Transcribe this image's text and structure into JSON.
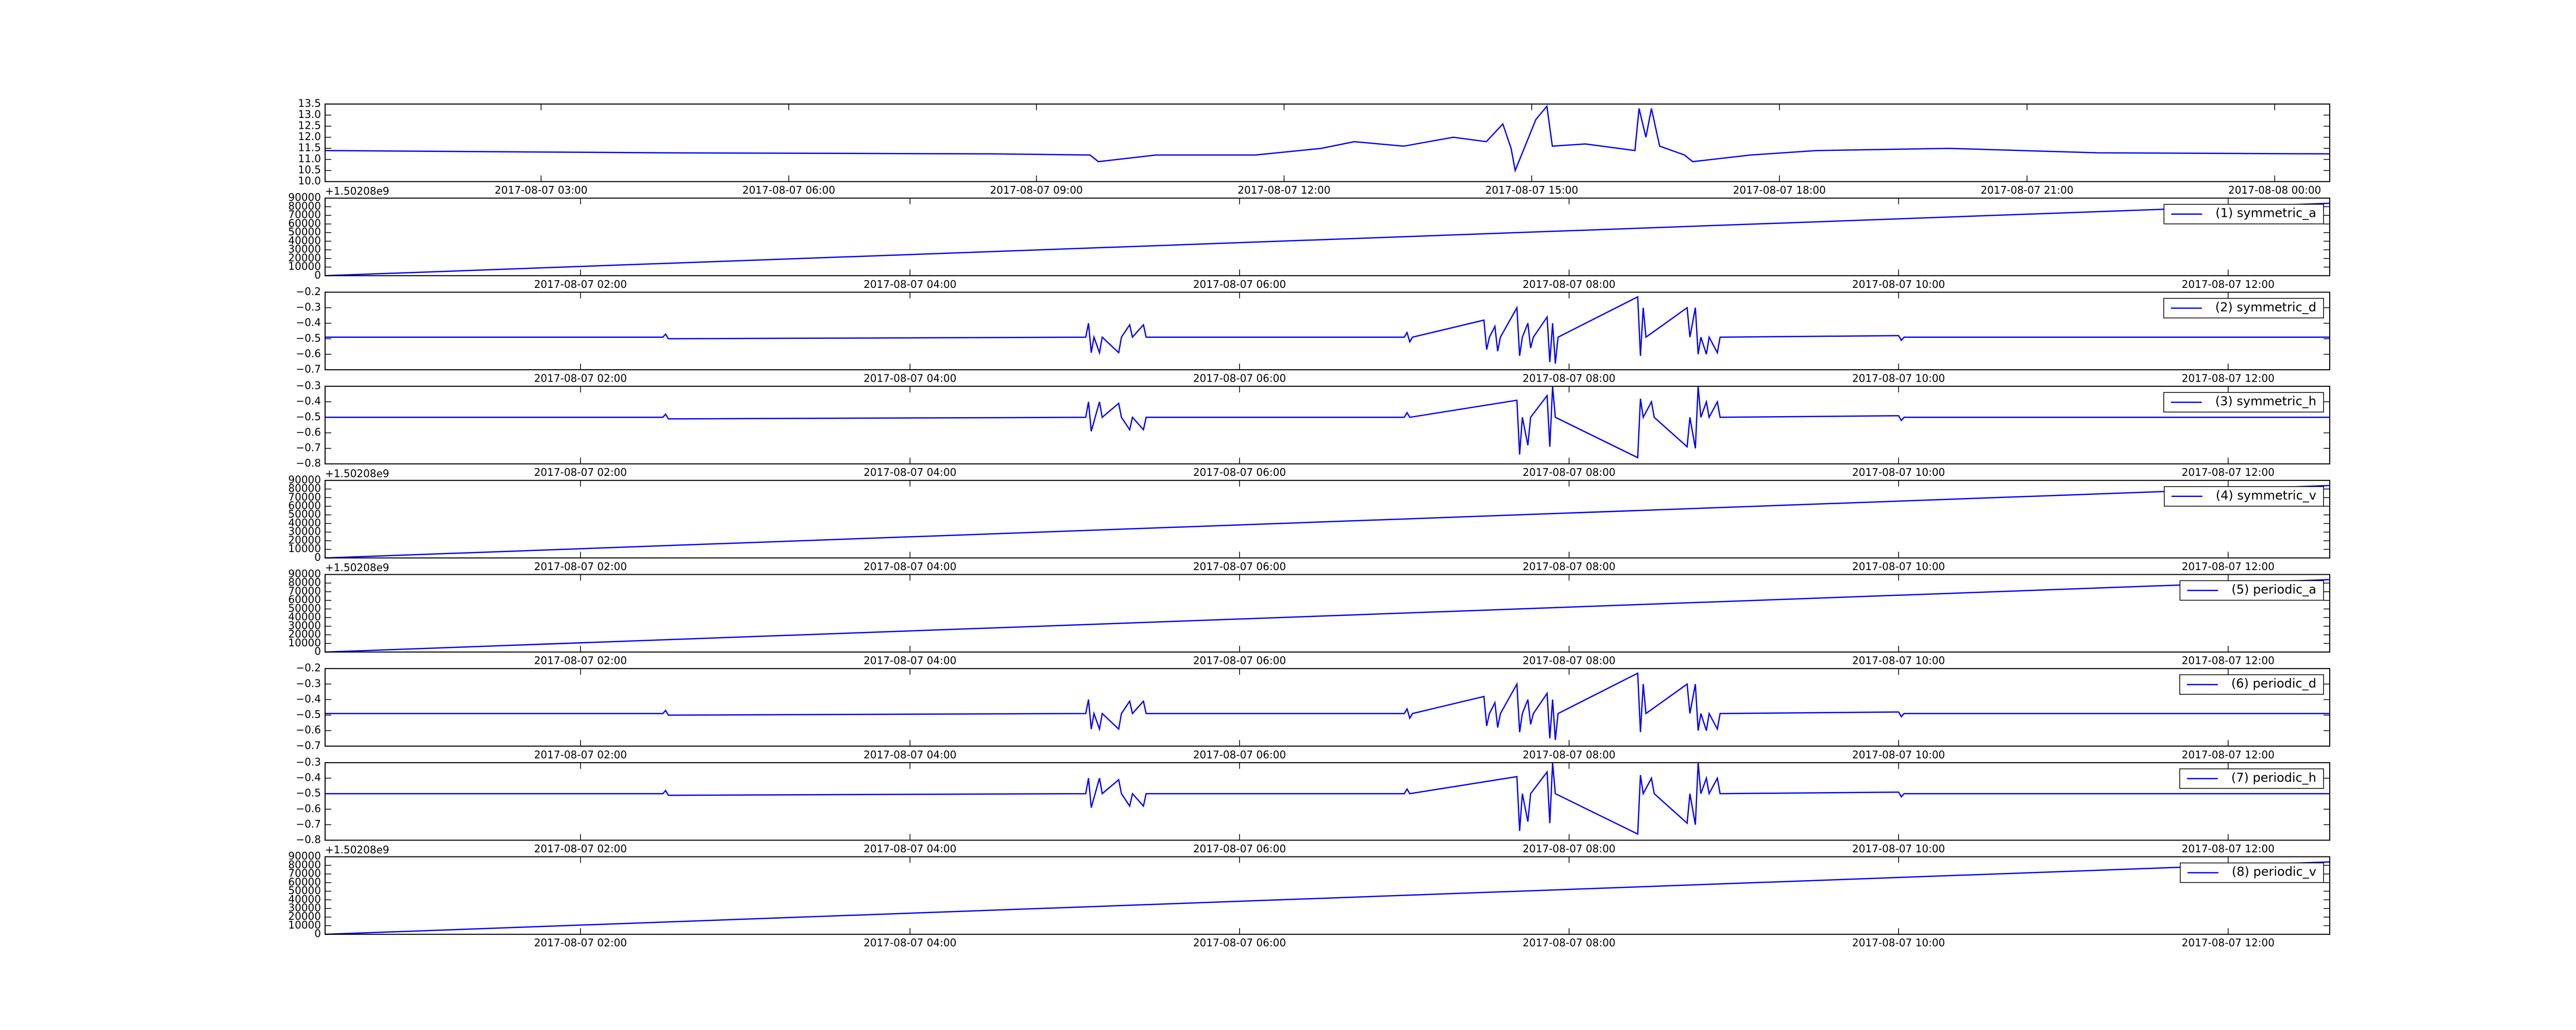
{
  "chart_data": [
    {
      "type": "line",
      "color": "#0000ff",
      "x": [
        "2017-08-07 00:23",
        "2017-08-07 04:27",
        "2017-08-07 08:27",
        "2017-08-07 09:39",
        "2017-08-07 09:45",
        "2017-08-07 10:27",
        "2017-08-07 11:39",
        "2017-08-07 12:27",
        "2017-08-07 12:51",
        "2017-08-07 13:27",
        "2017-08-07 14:03",
        "2017-08-07 14:27",
        "2017-08-07 14:39",
        "2017-08-07 14:45",
        "2017-08-07 14:48",
        "2017-08-07 15:03",
        "2017-08-07 15:11",
        "2017-08-07 15:15",
        "2017-08-07 15:39",
        "2017-08-07 16:15",
        "2017-08-07 16:18",
        "2017-08-07 16:23",
        "2017-08-07 16:27",
        "2017-08-07 16:33",
        "2017-08-07 16:51",
        "2017-08-07 16:57",
        "2017-08-07 17:39",
        "2017-08-07 18:27",
        "2017-08-07 20:03",
        "2017-08-07 21:51",
        "2017-08-08 00:40"
      ],
      "values": [
        11.4,
        11.3,
        11.25,
        11.2,
        10.9,
        11.2,
        11.2,
        11.5,
        11.8,
        11.6,
        12.0,
        11.8,
        12.6,
        11.5,
        10.5,
        12.8,
        13.4,
        11.6,
        11.7,
        11.4,
        13.3,
        12.0,
        13.3,
        11.6,
        11.2,
        10.9,
        11.2,
        11.4,
        11.5,
        11.3,
        11.25
      ],
      "xlim": [
        "2017-08-07 00:23",
        "2017-08-08 00:40"
      ],
      "xticks": [
        "2017-08-07 03:00",
        "2017-08-07 06:00",
        "2017-08-07 09:00",
        "2017-08-07 12:00",
        "2017-08-07 15:00",
        "2017-08-07 18:00",
        "2017-08-07 21:00",
        "2017-08-08 00:00"
      ],
      "ylim": [
        10,
        13.5
      ],
      "yticks": [
        {
          "value": 10,
          "label": "10.0"
        },
        10.5,
        {
          "value": 11,
          "label": "11.0"
        },
        11.5,
        {
          "value": 12,
          "label": "12.0"
        },
        12.5,
        {
          "value": 13,
          "label": "13.0"
        },
        13.5
      ]
    },
    {
      "type": "line",
      "x": [
        "2017-08-07 00:27",
        "2017-08-07 12:37"
      ],
      "series": [
        {
          "name": "(1) symmetric_a",
          "color": "#0000ff",
          "values": [
            0,
            84000
          ]
        }
      ],
      "xlim": [
        "2017-08-07 00:27",
        "2017-08-07 12:37"
      ],
      "xticks": [
        "2017-08-07 02:00",
        "2017-08-07 04:00",
        "2017-08-07 06:00",
        "2017-08-07 08:00",
        "2017-08-07 10:00",
        "2017-08-07 12:00"
      ],
      "ylim": [
        0,
        90000
      ],
      "yticks": [
        0,
        10000,
        20000,
        30000,
        40000,
        50000,
        60000,
        70000,
        80000,
        90000
      ],
      "y_offset_label": "+1.50208e9",
      "legend": "upper right"
    },
    {
      "type": "line",
      "x": [
        "2017-08-07 00:27",
        "2017-08-07 02:30",
        "2017-08-07 02:31",
        "2017-08-07 02:32",
        "2017-08-07 05:04",
        "2017-08-07 05:05",
        "2017-08-07 05:06",
        "2017-08-07 05:07",
        "2017-08-07 05:09",
        "2017-08-07 05:10",
        "2017-08-07 05:16",
        "2017-08-07 05:17",
        "2017-08-07 05:20",
        "2017-08-07 05:21",
        "2017-08-07 05:25",
        "2017-08-07 05:26",
        "2017-08-07 07:00",
        "2017-08-07 07:01",
        "2017-08-07 07:02",
        "2017-08-07 07:03",
        "2017-08-07 07:29",
        "2017-08-07 07:30",
        "2017-08-07 07:31",
        "2017-08-07 07:33",
        "2017-08-07 07:34",
        "2017-08-07 07:35",
        "2017-08-07 07:41",
        "2017-08-07 07:42",
        "2017-08-07 07:43",
        "2017-08-07 07:45",
        "2017-08-07 07:46",
        "2017-08-07 07:47",
        "2017-08-07 07:52",
        "2017-08-07 07:53",
        "2017-08-07 07:54",
        "2017-08-07 07:55",
        "2017-08-07 07:56",
        "2017-08-07 08:25",
        "2017-08-07 08:26",
        "2017-08-07 08:27",
        "2017-08-07 08:28",
        "2017-08-07 08:43",
        "2017-08-07 08:44",
        "2017-08-07 08:46",
        "2017-08-07 08:47",
        "2017-08-07 08:48",
        "2017-08-07 08:50",
        "2017-08-07 08:51",
        "2017-08-07 08:54",
        "2017-08-07 08:55",
        "2017-08-07 10:00",
        "2017-08-07 10:01",
        "2017-08-07 10:02",
        "2017-08-07 12:37"
      ],
      "series": [
        {
          "name": "(2) symmetric_d",
          "color": "#0000ff",
          "values": [
            -0.49,
            -0.49,
            -0.47,
            -0.5,
            -0.49,
            -0.4,
            -0.59,
            -0.49,
            -0.59,
            -0.49,
            -0.59,
            -0.49,
            -0.41,
            -0.49,
            -0.41,
            -0.49,
            -0.49,
            -0.46,
            -0.52,
            -0.49,
            -0.38,
            -0.57,
            -0.49,
            -0.42,
            -0.58,
            -0.49,
            -0.3,
            -0.61,
            -0.49,
            -0.4,
            -0.56,
            -0.49,
            -0.36,
            -0.65,
            -0.4,
            -0.66,
            -0.49,
            -0.23,
            -0.61,
            -0.3,
            -0.49,
            -0.3,
            -0.49,
            -0.3,
            -0.6,
            -0.49,
            -0.6,
            -0.49,
            -0.59,
            -0.49,
            -0.48,
            -0.51,
            -0.49,
            -0.49
          ]
        }
      ],
      "xlim": [
        "2017-08-07 00:27",
        "2017-08-07 12:37"
      ],
      "xticks": [
        "2017-08-07 02:00",
        "2017-08-07 04:00",
        "2017-08-07 06:00",
        "2017-08-07 08:00",
        "2017-08-07 10:00",
        "2017-08-07 12:00"
      ],
      "ylim": [
        -0.7,
        -0.2
      ],
      "yticks": [
        {
          "value": -0.7,
          "label": "−0.7"
        },
        {
          "value": -0.6,
          "label": "−0.6"
        },
        {
          "value": -0.5,
          "label": "−0.5"
        },
        {
          "value": -0.4,
          "label": "−0.4"
        },
        {
          "value": -0.3,
          "label": "−0.3"
        },
        {
          "value": -0.2,
          "label": "−0.2"
        }
      ],
      "legend": "upper right"
    },
    {
      "type": "line",
      "x": [
        "2017-08-07 00:27",
        "2017-08-07 02:30",
        "2017-08-07 02:31",
        "2017-08-07 02:32",
        "2017-08-07 05:04",
        "2017-08-07 05:05",
        "2017-08-07 05:06",
        "2017-08-07 05:09",
        "2017-08-07 05:10",
        "2017-08-07 05:16",
        "2017-08-07 05:17",
        "2017-08-07 05:20",
        "2017-08-07 05:21",
        "2017-08-07 05:25",
        "2017-08-07 05:26",
        "2017-08-07 07:00",
        "2017-08-07 07:01",
        "2017-08-07 07:02",
        "2017-08-07 07:41",
        "2017-08-07 07:42",
        "2017-08-07 07:43",
        "2017-08-07 07:45",
        "2017-08-07 07:46",
        "2017-08-07 07:52",
        "2017-08-07 07:53",
        "2017-08-07 07:54",
        "2017-08-07 07:55",
        "2017-08-07 08:25",
        "2017-08-07 08:26",
        "2017-08-07 08:27",
        "2017-08-07 08:30",
        "2017-08-07 08:31",
        "2017-08-07 08:43",
        "2017-08-07 08:44",
        "2017-08-07 08:46",
        "2017-08-07 08:47",
        "2017-08-07 08:48",
        "2017-08-07 08:50",
        "2017-08-07 08:51",
        "2017-08-07 08:54",
        "2017-08-07 08:55",
        "2017-08-07 10:00",
        "2017-08-07 10:01",
        "2017-08-07 10:02",
        "2017-08-07 12:37"
      ],
      "series": [
        {
          "name": "(3) symmetric_h",
          "color": "#0000ff",
          "values": [
            -0.5,
            -0.5,
            -0.48,
            -0.51,
            -0.5,
            -0.4,
            -0.59,
            -0.4,
            -0.5,
            -0.41,
            -0.5,
            -0.58,
            -0.5,
            -0.58,
            -0.5,
            -0.5,
            -0.47,
            -0.5,
            -0.39,
            -0.74,
            -0.5,
            -0.68,
            -0.5,
            -0.36,
            -0.69,
            -0.3,
            -0.5,
            -0.76,
            -0.38,
            -0.5,
            -0.4,
            -0.5,
            -0.69,
            -0.5,
            -0.7,
            -0.3,
            -0.5,
            -0.4,
            -0.5,
            -0.4,
            -0.5,
            -0.49,
            -0.52,
            -0.5,
            -0.5
          ]
        }
      ],
      "xlim": [
        "2017-08-07 00:27",
        "2017-08-07 12:37"
      ],
      "xticks": [
        "2017-08-07 02:00",
        "2017-08-07 04:00",
        "2017-08-07 06:00",
        "2017-08-07 08:00",
        "2017-08-07 10:00",
        "2017-08-07 12:00"
      ],
      "ylim": [
        -0.8,
        -0.3
      ],
      "yticks": [
        {
          "value": -0.8,
          "label": "−0.8"
        },
        {
          "value": -0.7,
          "label": "−0.7"
        },
        {
          "value": -0.6,
          "label": "−0.6"
        },
        {
          "value": -0.5,
          "label": "−0.5"
        },
        {
          "value": -0.4,
          "label": "−0.4"
        },
        {
          "value": -0.3,
          "label": "−0.3"
        }
      ],
      "legend": "upper right"
    },
    {
      "type": "line",
      "x": [
        "2017-08-07 00:27",
        "2017-08-07 12:37"
      ],
      "series": [
        {
          "name": "(4) symmetric_v",
          "color": "#0000ff",
          "values": [
            0,
            84000
          ]
        }
      ],
      "xlim": [
        "2017-08-07 00:27",
        "2017-08-07 12:37"
      ],
      "xticks": [
        "2017-08-07 02:00",
        "2017-08-07 04:00",
        "2017-08-07 06:00",
        "2017-08-07 08:00",
        "2017-08-07 10:00",
        "2017-08-07 12:00"
      ],
      "ylim": [
        0,
        90000
      ],
      "yticks": [
        0,
        10000,
        20000,
        30000,
        40000,
        50000,
        60000,
        70000,
        80000,
        90000
      ],
      "y_offset_label": "+1.50208e9",
      "legend": "upper right"
    },
    {
      "type": "line",
      "x": [
        "2017-08-07 00:27",
        "2017-08-07 12:37"
      ],
      "series": [
        {
          "name": "(5) periodic_a",
          "color": "#0000ff",
          "values": [
            0,
            84000
          ]
        }
      ],
      "xlim": [
        "2017-08-07 00:27",
        "2017-08-07 12:37"
      ],
      "xticks": [
        "2017-08-07 02:00",
        "2017-08-07 04:00",
        "2017-08-07 06:00",
        "2017-08-07 08:00",
        "2017-08-07 10:00",
        "2017-08-07 12:00"
      ],
      "ylim": [
        0,
        90000
      ],
      "yticks": [
        0,
        10000,
        20000,
        30000,
        40000,
        50000,
        60000,
        70000,
        80000,
        90000
      ],
      "y_offset_label": "+1.50208e9",
      "legend": "upper right"
    },
    {
      "type": "line",
      "x": [
        "2017-08-07 00:27",
        "2017-08-07 02:30",
        "2017-08-07 02:31",
        "2017-08-07 02:32",
        "2017-08-07 05:04",
        "2017-08-07 05:05",
        "2017-08-07 05:06",
        "2017-08-07 05:07",
        "2017-08-07 05:09",
        "2017-08-07 05:10",
        "2017-08-07 05:16",
        "2017-08-07 05:17",
        "2017-08-07 05:20",
        "2017-08-07 05:21",
        "2017-08-07 05:25",
        "2017-08-07 05:26",
        "2017-08-07 07:00",
        "2017-08-07 07:01",
        "2017-08-07 07:02",
        "2017-08-07 07:03",
        "2017-08-07 07:29",
        "2017-08-07 07:30",
        "2017-08-07 07:31",
        "2017-08-07 07:33",
        "2017-08-07 07:34",
        "2017-08-07 07:35",
        "2017-08-07 07:41",
        "2017-08-07 07:42",
        "2017-08-07 07:43",
        "2017-08-07 07:45",
        "2017-08-07 07:46",
        "2017-08-07 07:47",
        "2017-08-07 07:52",
        "2017-08-07 07:53",
        "2017-08-07 07:54",
        "2017-08-07 07:55",
        "2017-08-07 07:56",
        "2017-08-07 08:25",
        "2017-08-07 08:26",
        "2017-08-07 08:27",
        "2017-08-07 08:28",
        "2017-08-07 08:43",
        "2017-08-07 08:44",
        "2017-08-07 08:46",
        "2017-08-07 08:47",
        "2017-08-07 08:48",
        "2017-08-07 08:50",
        "2017-08-07 08:51",
        "2017-08-07 08:54",
        "2017-08-07 08:55",
        "2017-08-07 10:00",
        "2017-08-07 10:01",
        "2017-08-07 10:02",
        "2017-08-07 12:37"
      ],
      "series": [
        {
          "name": "(6) periodic_d",
          "color": "#0000ff",
          "values": [
            -0.49,
            -0.49,
            -0.47,
            -0.5,
            -0.49,
            -0.4,
            -0.59,
            -0.49,
            -0.59,
            -0.49,
            -0.59,
            -0.49,
            -0.41,
            -0.49,
            -0.41,
            -0.49,
            -0.49,
            -0.46,
            -0.52,
            -0.49,
            -0.38,
            -0.57,
            -0.49,
            -0.42,
            -0.58,
            -0.49,
            -0.3,
            -0.61,
            -0.49,
            -0.4,
            -0.56,
            -0.49,
            -0.36,
            -0.65,
            -0.4,
            -0.66,
            -0.49,
            -0.23,
            -0.61,
            -0.3,
            -0.49,
            -0.3,
            -0.49,
            -0.3,
            -0.6,
            -0.49,
            -0.6,
            -0.49,
            -0.59,
            -0.49,
            -0.48,
            -0.51,
            -0.49,
            -0.49
          ]
        }
      ],
      "xlim": [
        "2017-08-07 00:27",
        "2017-08-07 12:37"
      ],
      "xticks": [
        "2017-08-07 02:00",
        "2017-08-07 04:00",
        "2017-08-07 06:00",
        "2017-08-07 08:00",
        "2017-08-07 10:00",
        "2017-08-07 12:00"
      ],
      "ylim": [
        -0.7,
        -0.2
      ],
      "yticks": [
        {
          "value": -0.7,
          "label": "−0.7"
        },
        {
          "value": -0.6,
          "label": "−0.6"
        },
        {
          "value": -0.5,
          "label": "−0.5"
        },
        {
          "value": -0.4,
          "label": "−0.4"
        },
        {
          "value": -0.3,
          "label": "−0.3"
        },
        {
          "value": -0.2,
          "label": "−0.2"
        }
      ],
      "legend": "upper right"
    },
    {
      "type": "line",
      "x": [
        "2017-08-07 00:27",
        "2017-08-07 02:30",
        "2017-08-07 02:31",
        "2017-08-07 02:32",
        "2017-08-07 05:04",
        "2017-08-07 05:05",
        "2017-08-07 05:06",
        "2017-08-07 05:09",
        "2017-08-07 05:10",
        "2017-08-07 05:16",
        "2017-08-07 05:17",
        "2017-08-07 05:20",
        "2017-08-07 05:21",
        "2017-08-07 05:25",
        "2017-08-07 05:26",
        "2017-08-07 07:00",
        "2017-08-07 07:01",
        "2017-08-07 07:02",
        "2017-08-07 07:41",
        "2017-08-07 07:42",
        "2017-08-07 07:43",
        "2017-08-07 07:45",
        "2017-08-07 07:46",
        "2017-08-07 07:52",
        "2017-08-07 07:53",
        "2017-08-07 07:54",
        "2017-08-07 07:55",
        "2017-08-07 08:25",
        "2017-08-07 08:26",
        "2017-08-07 08:27",
        "2017-08-07 08:30",
        "2017-08-07 08:31",
        "2017-08-07 08:43",
        "2017-08-07 08:44",
        "2017-08-07 08:46",
        "2017-08-07 08:47",
        "2017-08-07 08:48",
        "2017-08-07 08:50",
        "2017-08-07 08:51",
        "2017-08-07 08:54",
        "2017-08-07 08:55",
        "2017-08-07 10:00",
        "2017-08-07 10:01",
        "2017-08-07 10:02",
        "2017-08-07 12:37"
      ],
      "series": [
        {
          "name": "(7) periodic_h",
          "color": "#0000ff",
          "values": [
            -0.5,
            -0.5,
            -0.48,
            -0.51,
            -0.5,
            -0.4,
            -0.59,
            -0.4,
            -0.5,
            -0.41,
            -0.5,
            -0.58,
            -0.5,
            -0.58,
            -0.5,
            -0.5,
            -0.47,
            -0.5,
            -0.39,
            -0.74,
            -0.5,
            -0.68,
            -0.5,
            -0.36,
            -0.69,
            -0.3,
            -0.5,
            -0.76,
            -0.38,
            -0.5,
            -0.4,
            -0.5,
            -0.69,
            -0.5,
            -0.7,
            -0.3,
            -0.5,
            -0.4,
            -0.5,
            -0.4,
            -0.5,
            -0.49,
            -0.52,
            -0.5,
            -0.5
          ]
        }
      ],
      "xlim": [
        "2017-08-07 00:27",
        "2017-08-07 12:37"
      ],
      "xticks": [
        "2017-08-07 02:00",
        "2017-08-07 04:00",
        "2017-08-07 06:00",
        "2017-08-07 08:00",
        "2017-08-07 10:00",
        "2017-08-07 12:00"
      ],
      "ylim": [
        -0.8,
        -0.3
      ],
      "yticks": [
        {
          "value": -0.8,
          "label": "−0.8"
        },
        {
          "value": -0.7,
          "label": "−0.7"
        },
        {
          "value": -0.6,
          "label": "−0.6"
        },
        {
          "value": -0.5,
          "label": "−0.5"
        },
        {
          "value": -0.4,
          "label": "−0.4"
        },
        {
          "value": -0.3,
          "label": "−0.3"
        }
      ],
      "legend": "upper right"
    },
    {
      "type": "line",
      "x": [
        "2017-08-07 00:27",
        "2017-08-07 12:37"
      ],
      "series": [
        {
          "name": "(8) periodic_v",
          "color": "#0000ff",
          "values": [
            0,
            84000
          ]
        }
      ],
      "xlim": [
        "2017-08-07 00:27",
        "2017-08-07 12:37"
      ],
      "xticks": [
        "2017-08-07 02:00",
        "2017-08-07 04:00",
        "2017-08-07 06:00",
        "2017-08-07 08:00",
        "2017-08-07 10:00",
        "2017-08-07 12:00"
      ],
      "ylim": [
        0,
        90000
      ],
      "yticks": [
        0,
        10000,
        20000,
        30000,
        40000,
        50000,
        60000,
        70000,
        80000,
        90000
      ],
      "y_offset_label": "+1.50208e9",
      "legend": "upper right"
    }
  ]
}
